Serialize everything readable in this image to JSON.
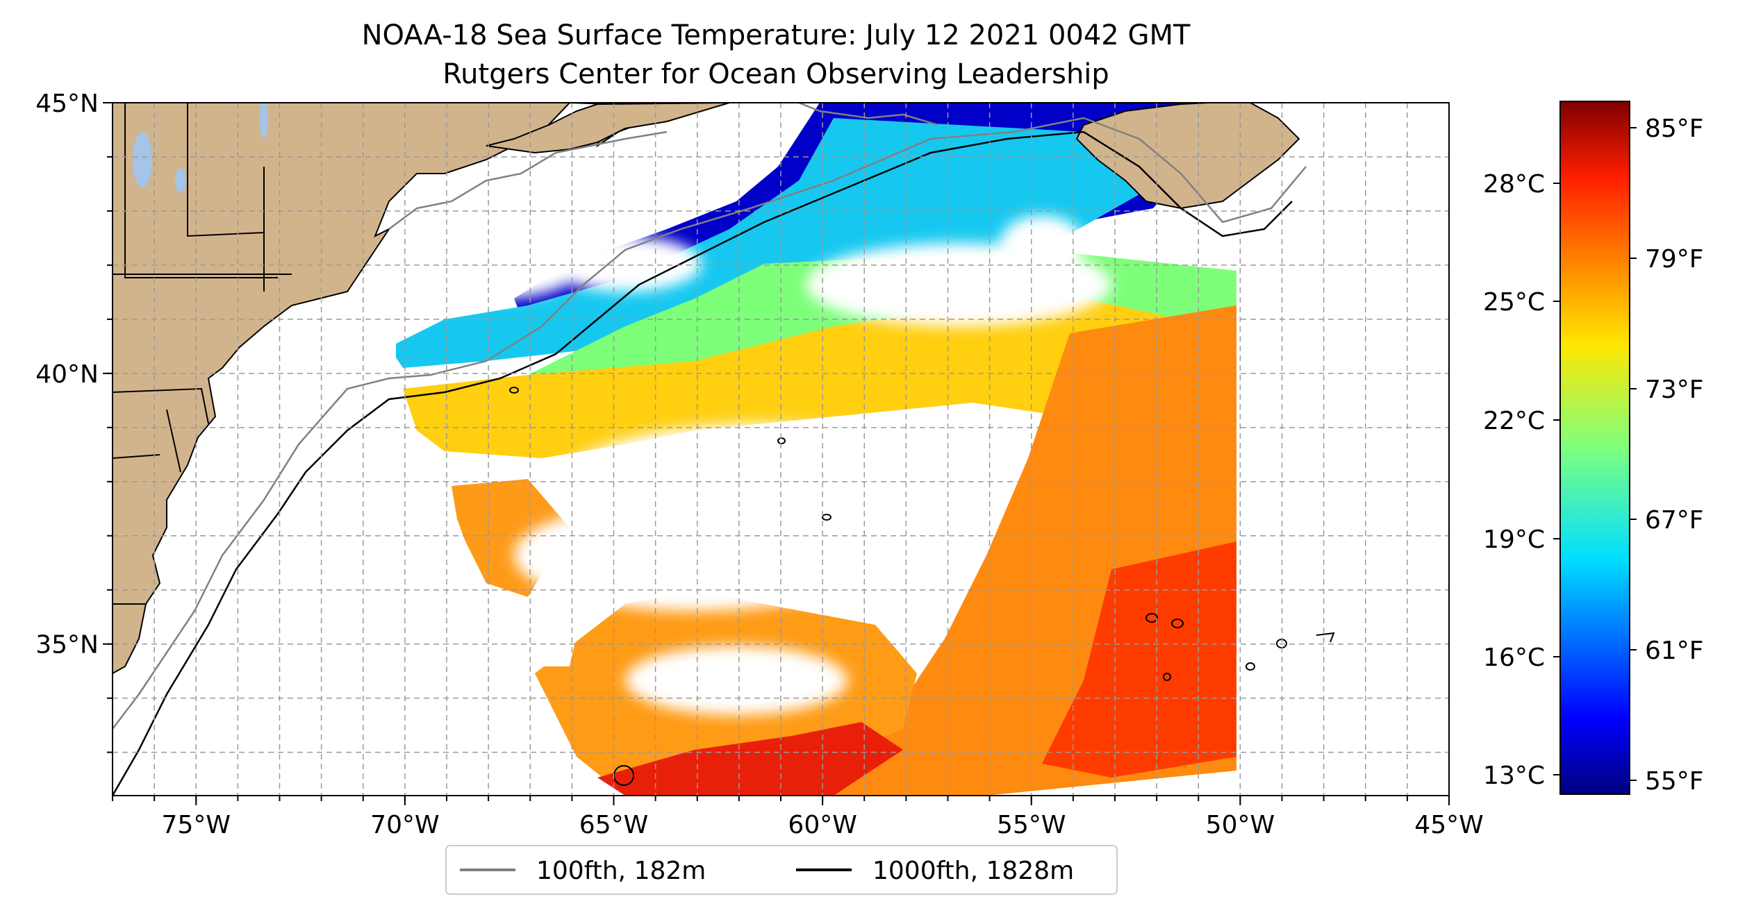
{
  "title": {
    "line1": "NOAA-18 Sea Surface Temperature: July 12 2021 0042 GMT",
    "line2": "Rutgers Center for Ocean Observing Leadership"
  },
  "map": {
    "lon_range": [
      -77,
      -45
    ],
    "lat_range": [
      32.2,
      45
    ],
    "x_ticks": [
      {
        "lon": -75,
        "label": "75°W"
      },
      {
        "lon": -70,
        "label": "70°W"
      },
      {
        "lon": -65,
        "label": "65°W"
      },
      {
        "lon": -60,
        "label": "60°W"
      },
      {
        "lon": -55,
        "label": "55°W"
      },
      {
        "lon": -50,
        "label": "50°W"
      },
      {
        "lon": -45,
        "label": "45°W"
      }
    ],
    "y_ticks": [
      {
        "lat": 45,
        "label": "45°N"
      },
      {
        "lat": 40,
        "label": "40°N"
      },
      {
        "lat": 35,
        "label": "35°N"
      }
    ],
    "grid": "dashed, every 1 degree",
    "colors": {
      "land": "#d2b48c",
      "lakes": "#a4c4e8",
      "contour_100": "#808080",
      "contour_1000": "#000000"
    }
  },
  "legend": {
    "placement": "bottom-center",
    "items": [
      {
        "label": "100fth, 182m",
        "color": "#808080"
      },
      {
        "label": "1000fth, 1828m",
        "color": "#000000"
      }
    ]
  },
  "colorbar": {
    "colormap": "jet",
    "celsius_labels": [
      "28°C",
      "25°C",
      "22°C",
      "19°C",
      "16°C",
      "13°C"
    ],
    "fahrenheit_labels": [
      "85°F",
      "79°F",
      "73°F",
      "67°F",
      "61°F",
      "55°F"
    ]
  }
}
